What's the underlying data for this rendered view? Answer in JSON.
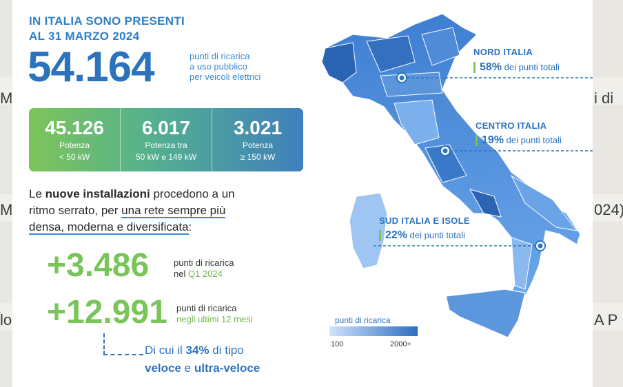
{
  "background": {
    "fragments": [
      "M",
      "i di",
      "M",
      "024)",
      "lo",
      "A P"
    ]
  },
  "header": {
    "title_line1": "IN ITALIA SONO PRESENTI",
    "title_line2": "AL 31 MARZO 2024"
  },
  "total": {
    "value": "54.164",
    "desc_line1": "punti di ricarica",
    "desc_line2": "a uso pubblico",
    "desc_line3": "per veicoli elettrici"
  },
  "kpis": [
    {
      "value": "45.126",
      "label_line1": "Potenza",
      "label_line2": "< 50 kW"
    },
    {
      "value": "6.017",
      "label_line1": "Potenza tra",
      "label_line2": "50 kW e 149 kW"
    },
    {
      "value": "3.021",
      "label_line1": "Potenza",
      "label_line2": "≥ 150 kW"
    }
  ],
  "paragraph": {
    "p1": "Le ",
    "bold1": "nuove installazioni",
    "p2": " procedono a un ritmo serrato, per ",
    "underlined": "una rete sempre più densa, moderna e diversificata",
    "p3": ":"
  },
  "stats": [
    {
      "value": "+3.486",
      "desc_line1": "punti di ricarica",
      "desc_prefix": "nel ",
      "desc_highlight": "Q1 2024"
    },
    {
      "value": "+12.991",
      "desc_line1": "punti di ricarica",
      "desc_prefix": "",
      "desc_highlight": "negli ultimi 12 mesi"
    }
  ],
  "sub_note": {
    "t1": "Di cui il ",
    "pct": "34%",
    "t2": " di tipo",
    "w1": "veloce",
    "t3": " e ",
    "w2": "ultra-veloce"
  },
  "regions": [
    {
      "name": "NORD ITALIA",
      "pct": "58%",
      "suffix": " dei punti totali"
    },
    {
      "name": "CENTRO ITALIA",
      "pct": "19%",
      "suffix": " dei punti totali"
    },
    {
      "name": "SUD ITALIA E ISOLE",
      "pct": "22%",
      "suffix": " dei punti totali"
    }
  ],
  "legend": {
    "title": "punti di ricarica",
    "min": "100",
    "max": "2000+"
  }
}
